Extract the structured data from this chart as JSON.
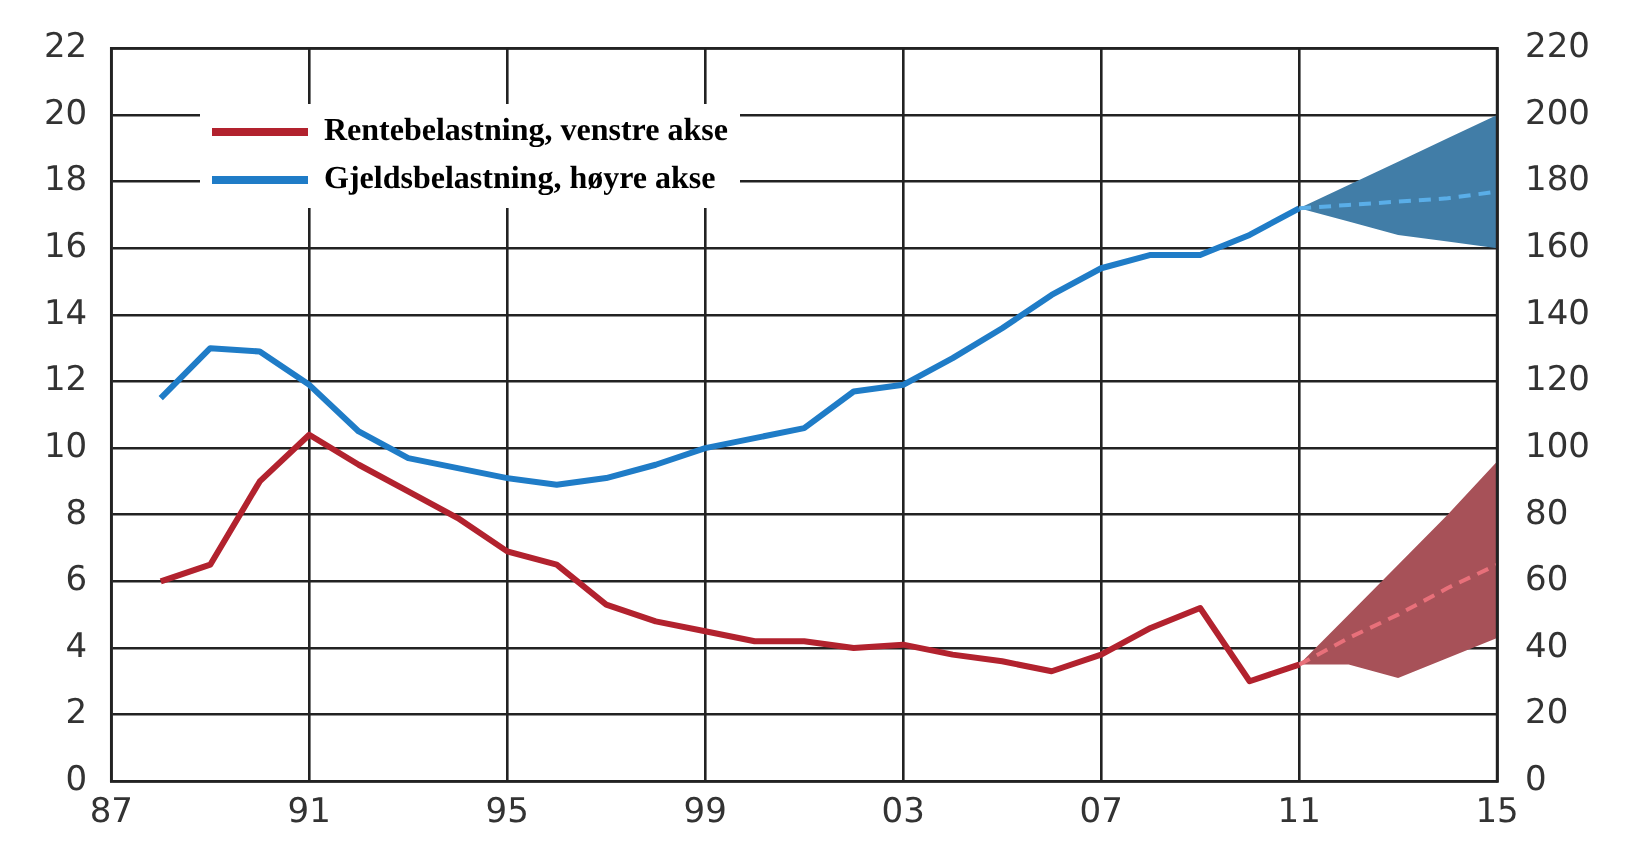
{
  "chart_data": {
    "type": "line",
    "xlim": [
      1987,
      2015
    ],
    "xticks": [
      {
        "value": 1987,
        "label": "87"
      },
      {
        "value": 1991,
        "label": "91"
      },
      {
        "value": 1995,
        "label": "95"
      },
      {
        "value": 1999,
        "label": "99"
      },
      {
        "value": 2003,
        "label": "03"
      },
      {
        "value": 2007,
        "label": "07"
      },
      {
        "value": 2011,
        "label": "11"
      },
      {
        "value": 2015,
        "label": "15"
      }
    ],
    "ylim": [
      0,
      22
    ],
    "yticks": [
      0,
      2,
      4,
      6,
      8,
      10,
      12,
      14,
      16,
      18,
      20,
      22
    ],
    "y2lim": [
      0,
      220
    ],
    "y2ticks": [
      0,
      20,
      40,
      60,
      80,
      100,
      120,
      140,
      160,
      180,
      200,
      220
    ],
    "grid": true,
    "legend": "top left",
    "line_style": "solid",
    "marker": "none",
    "series": [
      {
        "name": "Rentebelastning, venstre akse",
        "color": "#b2222e",
        "x": [
          1988,
          1989,
          1990,
          1991,
          1992,
          1993,
          1994,
          1995,
          1996,
          1997,
          1998,
          1999,
          2000,
          2001,
          2002,
          2003,
          2004,
          2005,
          2006,
          2007,
          2008,
          2009,
          2010,
          2011
        ],
        "values": [
          6.0,
          6.5,
          9.0,
          10.4,
          9.5,
          8.7,
          7.9,
          6.9,
          6.5,
          5.3,
          4.8,
          4.5,
          4.2,
          4.2,
          4.0,
          4.1,
          3.8,
          3.6,
          3.3,
          3.8,
          4.6,
          5.2,
          3.0,
          3.5
        ]
      },
      {
        "name": "Gjeldsbelastning, høyre akse",
        "color": "#1f7cc7",
        "axis": "y2",
        "x": [
          1988,
          1989,
          1990,
          1991,
          1992,
          1993,
          1994,
          1995,
          1996,
          1997,
          1998,
          1999,
          2000,
          2001,
          2002,
          2003,
          2004,
          2005,
          2006,
          2007,
          2008,
          2009,
          2010,
          2011
        ],
        "values": [
          115,
          130,
          129,
          119,
          105,
          97,
          94,
          91,
          89,
          91,
          95,
          100,
          103,
          106,
          117,
          119,
          127,
          136,
          146,
          154,
          158,
          158,
          164,
          172
        ]
      },
      {
        "color": "#e8707a",
        "line_style": "dashed",
        "x": [
          2011,
          2012,
          2013,
          2014,
          2015
        ],
        "values": [
          3.5,
          4.3,
          5.0,
          5.8,
          6.5
        ],
        "lower": [
          3.5,
          3.5,
          3.1,
          3.7,
          4.3
        ],
        "upper": [
          3.5,
          5.0,
          6.5,
          8.0,
          9.6
        ]
      },
      {
        "color": "#5aaee8",
        "axis": "y2",
        "line_style": "dashed",
        "x": [
          2011,
          2012,
          2013,
          2014,
          2015
        ],
        "values": [
          172,
          173,
          174,
          175,
          177
        ],
        "lower": [
          172,
          168,
          164,
          162,
          160
        ],
        "upper": [
          172,
          179,
          186,
          193,
          200
        ]
      }
    ]
  }
}
